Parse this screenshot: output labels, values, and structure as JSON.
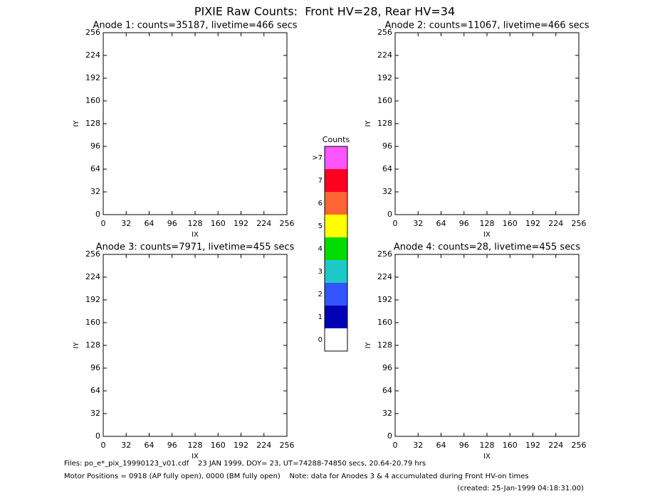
{
  "title": "PIXIE Raw Counts:  Front HV=28, Rear HV=34",
  "chart_data": [
    {
      "type": "image",
      "title": "Anode 1: counts=35187, livetime=466 secs",
      "xlabel": "IX",
      "ylabel": "IY",
      "xlim": [
        0,
        256
      ],
      "ylim": [
        0,
        256
      ],
      "xticks": [
        0,
        32,
        64,
        96,
        128,
        160,
        192,
        224,
        256
      ],
      "yticks": [
        0,
        32,
        64,
        96,
        128,
        160,
        192,
        224,
        256
      ]
    },
    {
      "type": "image",
      "title": "Anode 2: counts=11067, livetime=466 secs",
      "xlabel": "IX",
      "ylabel": "IY",
      "xlim": [
        0,
        256
      ],
      "ylim": [
        0,
        256
      ],
      "xticks": [
        0,
        32,
        64,
        96,
        128,
        160,
        192,
        224,
        256
      ],
      "yticks": [
        0,
        32,
        64,
        96,
        128,
        160,
        192,
        224,
        256
      ]
    },
    {
      "type": "image",
      "title": "Anode 3: counts=7971, livetime=455 secs",
      "xlabel": "IX",
      "ylabel": "IY",
      "xlim": [
        0,
        256
      ],
      "ylim": [
        0,
        256
      ],
      "xticks": [
        0,
        32,
        64,
        96,
        128,
        160,
        192,
        224,
        256
      ],
      "yticks": [
        0,
        32,
        64,
        96,
        128,
        160,
        192,
        224,
        256
      ]
    },
    {
      "type": "image",
      "title": "Anode 4: counts=28, livetime=455 secs",
      "xlabel": "IX",
      "ylabel": "IY",
      "xlim": [
        0,
        256
      ],
      "ylim": [
        0,
        256
      ],
      "xticks": [
        0,
        32,
        64,
        96,
        128,
        160,
        192,
        224,
        256
      ],
      "yticks": [
        0,
        32,
        64,
        96,
        128,
        160,
        192,
        224,
        256
      ]
    }
  ],
  "colorbar": {
    "title": "Counts",
    "levels": [
      {
        "label": "0",
        "color": "#ffffff"
      },
      {
        "label": "1",
        "color": "#0000b4"
      },
      {
        "label": "2",
        "color": "#3355ff"
      },
      {
        "label": "3",
        "color": "#1ec8c8"
      },
      {
        "label": "4",
        "color": "#00dc00"
      },
      {
        "label": "5",
        "color": "#ffff00"
      },
      {
        "label": "6",
        "color": "#ff6432"
      },
      {
        "label": "7",
        "color": "#ff0020"
      },
      {
        "label": ">7",
        "color": "#ff55ff"
      }
    ]
  },
  "footer": {
    "files": "Files: po_e*_pix_19990123_v01.cdf    23 JAN 1999, DOY= 23, UT=74288-74850 secs, 20.64-20.79 hrs",
    "motor": "Motor Positions = 0918 (AP fully open), 0000 (BM fully open)    Note: data for Anodes 3 & 4 accumulated during Front HV-on times",
    "created": "(created: 25-Jan-1999 04:18:31.00)"
  }
}
